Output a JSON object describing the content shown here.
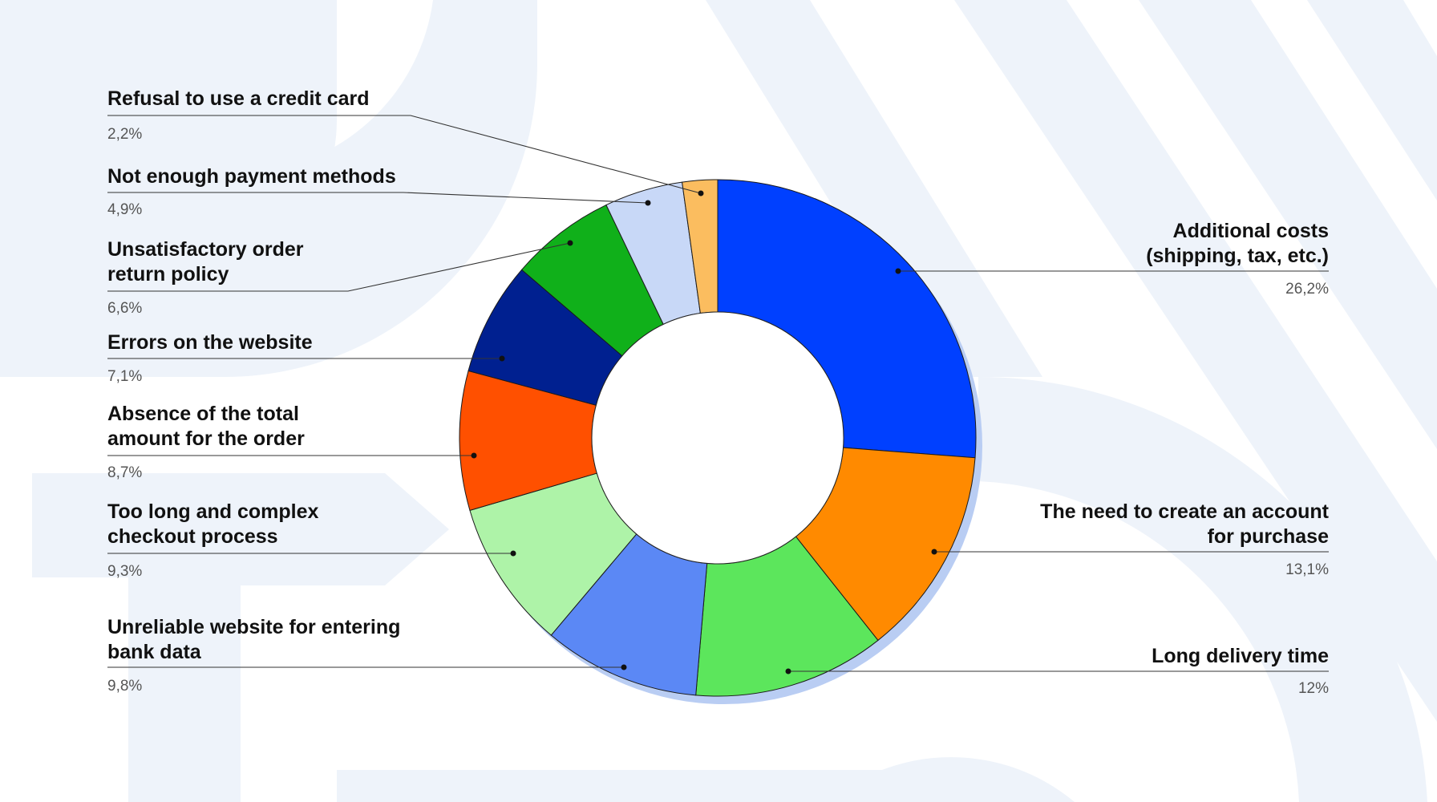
{
  "chart_data": {
    "type": "pie",
    "variant": "donut",
    "start": "12 o'clock, clockwise",
    "slices": [
      {
        "label": [
          "Additional costs",
          "(shipping, tax, etc.)"
        ],
        "value": 26.2,
        "value_text": "26,2%",
        "color": "#0040ff",
        "side": "right"
      },
      {
        "label": [
          "The need to create an account",
          "for purchase"
        ],
        "value": 13.1,
        "value_text": "13,1%",
        "color": "#ff8a00",
        "side": "right"
      },
      {
        "label": [
          "Long delivery time"
        ],
        "value": 12,
        "value_text": "12%",
        "color": "#5ce65c",
        "side": "right"
      },
      {
        "label": [
          "Unreliable website for entering",
          "bank data"
        ],
        "value": 9.8,
        "value_text": "9,8%",
        "color": "#5b88f5",
        "side": "left"
      },
      {
        "label": [
          "Too long and complex",
          "checkout process"
        ],
        "value": 9.3,
        "value_text": "9,3%",
        "color": "#aef3a8",
        "side": "left"
      },
      {
        "label": [
          "Absence of the total",
          "amount for the order"
        ],
        "value": 8.7,
        "value_text": "8,7%",
        "color": "#ff5000",
        "side": "left"
      },
      {
        "label": [
          "Errors on the website"
        ],
        "value": 7.1,
        "value_text": "7,1%",
        "color": "#002090",
        "side": "left"
      },
      {
        "label": [
          "Unsatisfactory order",
          "return policy"
        ],
        "value": 6.6,
        "value_text": "6,6%",
        "color": "#10b01a",
        "side": "left"
      },
      {
        "label": [
          "Not enough payment methods"
        ],
        "value": 4.9,
        "value_text": "4,9%",
        "color": "#c8d8f7",
        "side": "left"
      },
      {
        "label": [
          "Refusal to use a credit card"
        ],
        "value": 2.2,
        "value_text": "2,2%",
        "color": "#fbbd5f",
        "side": "left"
      }
    ],
    "shadow_color": "#b9cdf3",
    "background_shape_color": "#eef3fa"
  }
}
